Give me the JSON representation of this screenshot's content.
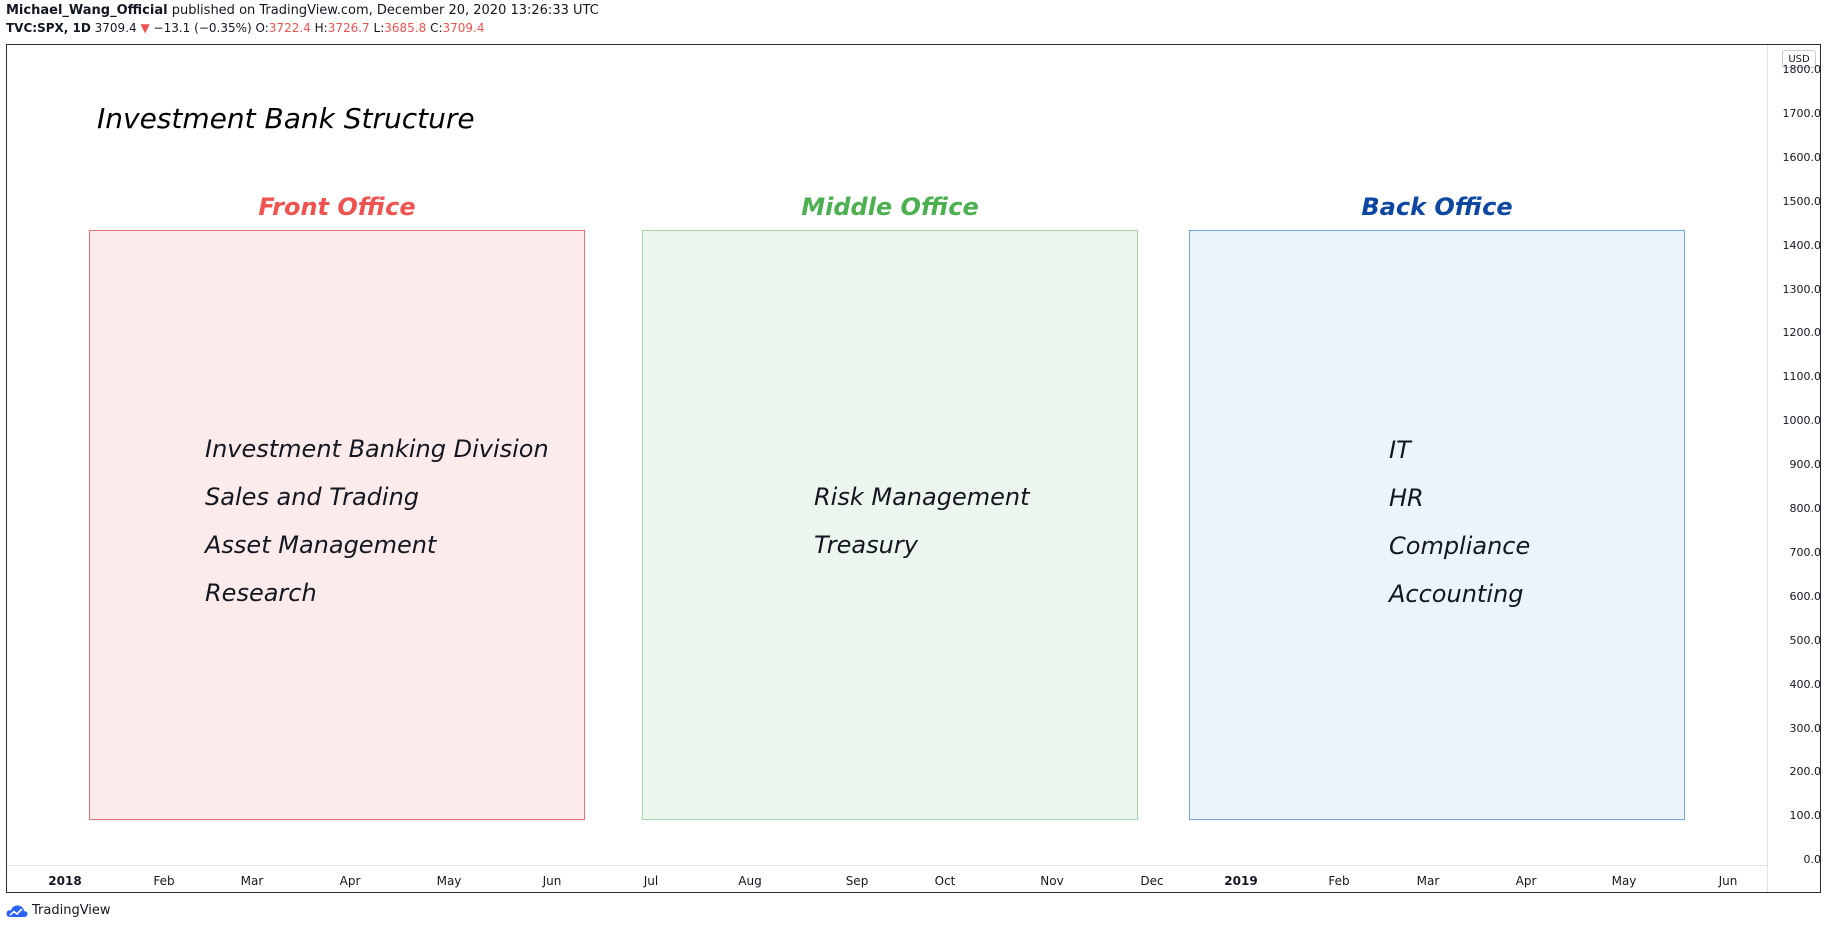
{
  "header": {
    "author": "Michael_Wang_Official",
    "published": "published on TradingView.com, December 20, 2020 13:26:33 UTC",
    "symbol": "TVC:SPX, 1D",
    "last": "3709.4",
    "change_arrow": "▼",
    "change": "−13.1 (−0.35%)",
    "open_label": "O:",
    "open": "3722.4",
    "high_label": "H:",
    "high": "3726.7",
    "low_label": "L:",
    "low": "3685.8",
    "close_label": "C:",
    "close": "3709.4"
  },
  "diagram": {
    "title": "Investment Bank Structure",
    "front": {
      "title": "Front Office",
      "color": "#ef5350",
      "items": [
        "Investment Banking Division",
        "Sales and Trading",
        "Asset Management",
        "Research"
      ]
    },
    "middle": {
      "title": "Middle Office",
      "color": "#4caf50",
      "items": [
        "Risk Management",
        "Treasury"
      ]
    },
    "back": {
      "title": "Back Office",
      "color": "#0d47a1",
      "items": [
        "IT",
        "HR",
        "Compliance",
        "Accounting"
      ]
    }
  },
  "price_axis": {
    "currency": "USD",
    "ticks": [
      "1800.0",
      "1700.0",
      "1600.0",
      "1500.0",
      "1400.0",
      "1300.0",
      "1200.0",
      "1100.0",
      "1000.0",
      "900.0",
      "800.0",
      "700.0",
      "600.0",
      "500.0",
      "400.0",
      "300.0",
      "200.0",
      "100.0",
      "0.0"
    ]
  },
  "time_axis": {
    "ticks": [
      "2018",
      "Feb",
      "Mar",
      "Apr",
      "May",
      "Jun",
      "Jul",
      "Aug",
      "Sep",
      "Oct",
      "Nov",
      "Dec",
      "2019",
      "Feb",
      "Mar",
      "Apr",
      "May",
      "Jun"
    ]
  },
  "footer": {
    "brand": "TradingView"
  }
}
